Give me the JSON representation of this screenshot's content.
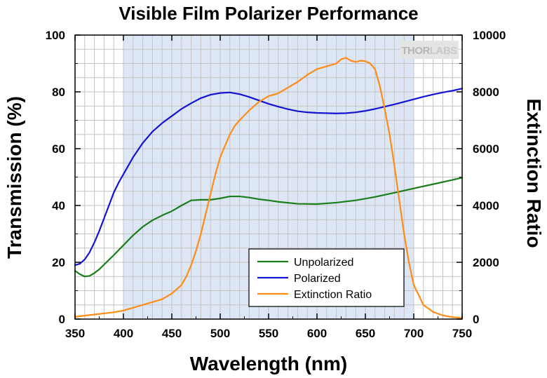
{
  "chart_data": {
    "type": "line",
    "title": "Visible Film Polarizer Performance",
    "xlabel": "Wavelength (nm)",
    "ylabel_left": "Transmission (%)",
    "ylabel_right": "Extinction Ratio",
    "xlim": [
      350,
      750
    ],
    "ylim_left": [
      0,
      100
    ],
    "ylim_right": [
      0,
      10000
    ],
    "x_ticks": [
      "350",
      "400",
      "450",
      "500",
      "550",
      "600",
      "650",
      "700",
      "750"
    ],
    "y_left_ticks": [
      "0",
      "20",
      "40",
      "60",
      "80",
      "100"
    ],
    "y_right_ticks": [
      "0",
      "2000",
      "4000",
      "6000",
      "8000",
      "10000"
    ],
    "grid": true,
    "highlight_band": {
      "x_start": 400,
      "x_end": 700,
      "color": "#dce6f5"
    },
    "legend_position": "bottom-right",
    "watermark": {
      "part1": "THOR",
      "part2": "LABS"
    },
    "series": [
      {
        "name": "Unpolarized",
        "axis": "left",
        "color": "#1a7d1a",
        "x": [
          350,
          355,
          360,
          365,
          370,
          375,
          380,
          390,
          400,
          410,
          420,
          430,
          440,
          450,
          460,
          470,
          480,
          490,
          500,
          510,
          520,
          530,
          540,
          550,
          560,
          580,
          600,
          620,
          640,
          660,
          680,
          700,
          720,
          740,
          750
        ],
        "y": [
          17,
          15.8,
          15,
          15.2,
          16.2,
          17.5,
          19.2,
          22.5,
          26,
          29.5,
          32.5,
          34.8,
          36.5,
          38,
          40,
          41.8,
          42,
          42,
          42.5,
          43.2,
          43.2,
          42.8,
          42.2,
          41.8,
          41.3,
          40.6,
          40.5,
          41,
          41.8,
          43,
          44.5,
          46,
          47.5,
          49,
          49.8
        ]
      },
      {
        "name": "Polarized",
        "axis": "left",
        "color": "#1414d2",
        "x": [
          350,
          355,
          360,
          365,
          370,
          375,
          380,
          385,
          390,
          395,
          400,
          410,
          420,
          430,
          440,
          450,
          460,
          470,
          480,
          490,
          500,
          510,
          520,
          530,
          540,
          550,
          560,
          570,
          580,
          590,
          600,
          610,
          620,
          630,
          640,
          650,
          660,
          670,
          680,
          690,
          700,
          710,
          720,
          730,
          740,
          750
        ],
        "y": [
          19,
          19.5,
          21,
          23.5,
          27,
          31,
          35.5,
          40,
          44.5,
          48,
          51,
          57,
          62,
          66,
          69,
          71.5,
          74,
          76,
          77.8,
          79,
          79.6,
          79.8,
          79.2,
          78.2,
          77,
          75.8,
          74.8,
          73.9,
          73.2,
          72.8,
          72.6,
          72.5,
          72.4,
          72.5,
          72.8,
          73.3,
          74,
          74.8,
          75.6,
          76.5,
          77.4,
          78.3,
          79.1,
          79.8,
          80.4,
          81.2
        ]
      },
      {
        "name": "Extinction Ratio",
        "axis": "right",
        "color": "#ff8c14",
        "x": [
          350,
          370,
          390,
          400,
          420,
          440,
          450,
          460,
          465,
          470,
          475,
          480,
          485,
          490,
          495,
          500,
          505,
          510,
          515,
          520,
          530,
          540,
          550,
          560,
          570,
          580,
          590,
          600,
          610,
          620,
          625,
          630,
          635,
          640,
          645,
          650,
          655,
          660,
          665,
          670,
          675,
          680,
          685,
          690,
          695,
          700,
          710,
          720,
          730,
          740,
          750
        ],
        "y": [
          80,
          160,
          240,
          300,
          500,
          700,
          900,
          1200,
          1500,
          1900,
          2400,
          3000,
          3700,
          4400,
          5100,
          5700,
          6100,
          6500,
          6800,
          7000,
          7350,
          7650,
          7850,
          7950,
          8150,
          8350,
          8600,
          8800,
          8900,
          9000,
          9150,
          9200,
          9100,
          9050,
          9100,
          9080,
          9000,
          8800,
          8200,
          7400,
          6500,
          5400,
          4200,
          3000,
          2000,
          1200,
          500,
          250,
          130,
          70,
          40
        ]
      }
    ]
  }
}
